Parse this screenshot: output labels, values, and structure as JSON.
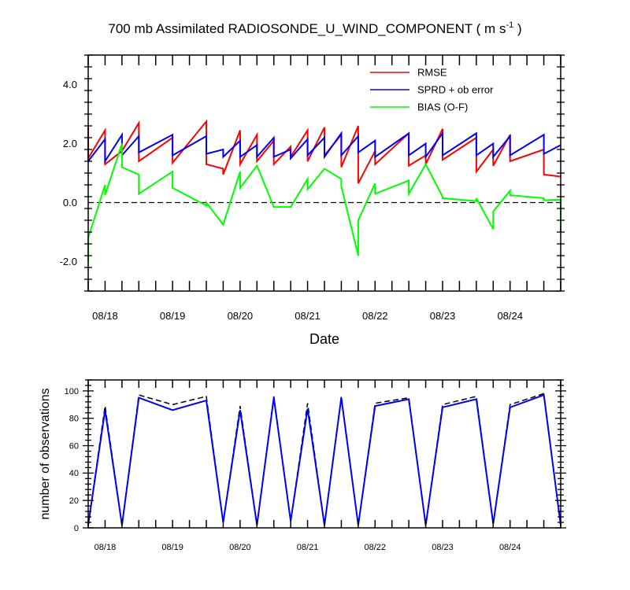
{
  "colors": {
    "rmse": "#ff0000",
    "sprd": "#0000ff",
    "bias": "#00ff00",
    "obs_total": "#000000",
    "obs_assim": "#0000ff",
    "zero_line": "#000000"
  },
  "chart_data": [
    {
      "type": "line",
      "title_main": "700 mb Assimilated RADIOSONDE_U_WIND_COMPONENT ( m s",
      "title_sup": "-1",
      "title_end": " )",
      "xlabel": "Date",
      "ylabel": "",
      "xlim": [
        0,
        28
      ],
      "ylim": [
        -3,
        5
      ],
      "yticks": [
        -2,
        0,
        2,
        4
      ],
      "ytick_labels": [
        "-2.0",
        "0.0",
        "2.0",
        "4.0"
      ],
      "xticks": [
        1,
        5,
        9,
        13,
        17,
        21,
        25
      ],
      "xtick_labels": [
        "08/18",
        "08/19",
        "08/20",
        "08/21",
        "08/22",
        "08/23",
        "08/24"
      ],
      "zero_line": true,
      "legend_position": "top-right",
      "series": [
        {
          "name": "RMSE",
          "color_key": "rmse",
          "points": [
            [
              0,
              2.6
            ],
            [
              0,
              1.5
            ],
            [
              1,
              2.45
            ],
            [
              1,
              1.3
            ],
            [
              2,
              1.75
            ],
            [
              3,
              2.7
            ],
            [
              3,
              1.4
            ],
            [
              5,
              2.2
            ],
            [
              5,
              1.35
            ],
            [
              7,
              2.75
            ],
            [
              7,
              1.3
            ],
            [
              8,
              1.15
            ],
            [
              8,
              0.95
            ],
            [
              9,
              2.45
            ],
            [
              9,
              1.3
            ],
            [
              10,
              2.3
            ],
            [
              10,
              1.4
            ],
            [
              11,
              2.1
            ],
            [
              11,
              1.3
            ],
            [
              12,
              1.9
            ],
            [
              12,
              1.55
            ],
            [
              13,
              2.45
            ],
            [
              13,
              1.4
            ],
            [
              14,
              2.55
            ],
            [
              14,
              1.6
            ],
            [
              15,
              2.3
            ],
            [
              15,
              1.2
            ],
            [
              16,
              2.6
            ],
            [
              16,
              0.65
            ],
            [
              17,
              1.75
            ],
            [
              17,
              1.3
            ],
            [
              19,
              2.35
            ],
            [
              19,
              1.25
            ],
            [
              20,
              1.6
            ],
            [
              20,
              1.3
            ],
            [
              21,
              2.5
            ],
            [
              21,
              1.45
            ],
            [
              23,
              2.2
            ],
            [
              23,
              1.05
            ],
            [
              24,
              1.8
            ],
            [
              24,
              1.25
            ],
            [
              25,
              2.3
            ],
            [
              25,
              1.4
            ],
            [
              27,
              1.8
            ],
            [
              27,
              0.95
            ],
            [
              28,
              0.88
            ]
          ]
        },
        {
          "name": "SPRD + ob error",
          "color_key": "sprd",
          "points": [
            [
              0,
              1.4
            ],
            [
              1,
              2.15
            ],
            [
              1,
              1.4
            ],
            [
              2,
              2.3
            ],
            [
              2,
              1.6
            ],
            [
              3,
              2.25
            ],
            [
              3,
              1.7
            ],
            [
              5,
              2.3
            ],
            [
              5,
              1.6
            ],
            [
              7,
              2.25
            ],
            [
              7,
              1.65
            ],
            [
              8,
              1.8
            ],
            [
              8,
              1.55
            ],
            [
              9,
              2.1
            ],
            [
              9,
              1.55
            ],
            [
              10,
              1.95
            ],
            [
              10,
              1.55
            ],
            [
              11,
              2.2
            ],
            [
              11,
              1.55
            ],
            [
              12,
              1.8
            ],
            [
              12,
              1.5
            ],
            [
              13,
              2.15
            ],
            [
              13,
              1.6
            ],
            [
              14,
              2.2
            ],
            [
              14,
              1.55
            ],
            [
              15,
              2.35
            ],
            [
              15,
              1.6
            ],
            [
              16,
              2.25
            ],
            [
              16,
              1.7
            ],
            [
              17,
              2.1
            ],
            [
              17,
              1.55
            ],
            [
              19,
              2.35
            ],
            [
              19,
              1.6
            ],
            [
              20,
              2.0
            ],
            [
              20,
              1.55
            ],
            [
              21,
              2.35
            ],
            [
              21,
              1.6
            ],
            [
              23,
              2.35
            ],
            [
              23,
              1.6
            ],
            [
              24,
              2.0
            ],
            [
              24,
              1.55
            ],
            [
              25,
              2.25
            ],
            [
              25,
              1.6
            ],
            [
              27,
              2.3
            ],
            [
              27,
              1.65
            ],
            [
              28,
              1.95
            ]
          ]
        },
        {
          "name": "BIAS (O-F)",
          "color_key": "bias",
          "points": [
            [
              0,
              -2.0
            ],
            [
              0,
              -1.2
            ],
            [
              1,
              0.6
            ],
            [
              1,
              0.25
            ],
            [
              2,
              2.0
            ],
            [
              2,
              1.2
            ],
            [
              3,
              0.95
            ],
            [
              3,
              0.3
            ],
            [
              5,
              1.05
            ],
            [
              5,
              0.5
            ],
            [
              7,
              -0.1
            ],
            [
              7,
              0.0
            ],
            [
              8,
              -0.75
            ],
            [
              9,
              1.05
            ],
            [
              9,
              0.5
            ],
            [
              10,
              1.25
            ],
            [
              11,
              -0.15
            ],
            [
              12,
              -0.15
            ],
            [
              13,
              0.8
            ],
            [
              13,
              0.45
            ],
            [
              14,
              1.15
            ],
            [
              15,
              0.8
            ],
            [
              15,
              0.55
            ],
            [
              16,
              -1.8
            ],
            [
              16,
              -0.6
            ],
            [
              17,
              0.65
            ],
            [
              17,
              0.3
            ],
            [
              19,
              0.75
            ],
            [
              19,
              0.3
            ],
            [
              20,
              1.3
            ],
            [
              21,
              0.2
            ],
            [
              21,
              0.15
            ],
            [
              23,
              0.05
            ],
            [
              23,
              0.15
            ],
            [
              24,
              -0.9
            ],
            [
              24,
              -0.3
            ],
            [
              25,
              0.4
            ],
            [
              25,
              0.25
            ],
            [
              27,
              0.15
            ],
            [
              27,
              0.08
            ],
            [
              28,
              0.1
            ],
            [
              28,
              -1.0
            ]
          ]
        }
      ]
    },
    {
      "type": "line",
      "title": "",
      "xlabel": "",
      "ylabel": "number of observations",
      "xlim": [
        0,
        28
      ],
      "ylim": [
        0,
        108
      ],
      "yticks": [
        0,
        20,
        40,
        60,
        80,
        100
      ],
      "ytick_labels": [
        "0",
        "20",
        "40",
        "60",
        "80",
        "100"
      ],
      "xticks": [
        1,
        5,
        9,
        13,
        17,
        21,
        25
      ],
      "xtick_labels": [
        "08/18",
        "08/19",
        "08/20",
        "08/21",
        "08/22",
        "08/23",
        "08/24"
      ],
      "series": [
        {
          "color_key": "obs_total",
          "dashed": true,
          "points": [
            [
              0,
              2
            ],
            [
              1,
              89
            ],
            [
              2,
              2
            ],
            [
              3,
              97
            ],
            [
              5,
              90
            ],
            [
              7,
              96
            ],
            [
              8,
              4
            ],
            [
              9,
              89
            ],
            [
              10,
              2
            ],
            [
              11,
              96
            ],
            [
              12,
              5
            ],
            [
              13,
              91
            ],
            [
              14,
              2
            ],
            [
              15,
              96
            ],
            [
              16,
              2
            ],
            [
              17,
              91
            ],
            [
              19,
              95
            ],
            [
              20,
              2
            ],
            [
              21,
              90
            ],
            [
              23,
              96
            ],
            [
              24,
              3
            ],
            [
              25,
              90
            ],
            [
              27,
              98
            ],
            [
              28,
              2
            ]
          ]
        },
        {
          "color_key": "obs_assim",
          "dashed": false,
          "points": [
            [
              0,
              2
            ],
            [
              1,
              86
            ],
            [
              2,
              2
            ],
            [
              3,
              95
            ],
            [
              5,
              86
            ],
            [
              7,
              93
            ],
            [
              8,
              4
            ],
            [
              9,
              86
            ],
            [
              10,
              2
            ],
            [
              11,
              95
            ],
            [
              12,
              5
            ],
            [
              13,
              87
            ],
            [
              14,
              2
            ],
            [
              15,
              95
            ],
            [
              16,
              2
            ],
            [
              17,
              89
            ],
            [
              19,
              94
            ],
            [
              20,
              2
            ],
            [
              21,
              88
            ],
            [
              23,
              94
            ],
            [
              24,
              3
            ],
            [
              25,
              88
            ],
            [
              27,
              97
            ],
            [
              28,
              2
            ]
          ]
        }
      ]
    }
  ]
}
